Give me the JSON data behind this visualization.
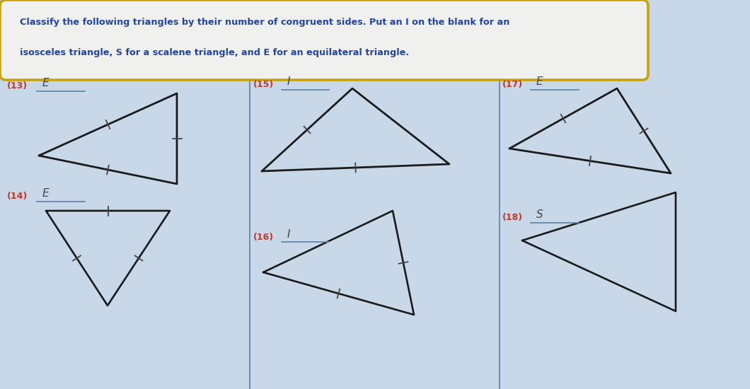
{
  "bg_color": "#c8d8e8",
  "title_line1": "Classify the following triangles by their number of congruent sides. Put an I on the blank for an",
  "title_line2": "isosceles triangle, S for a scalene triangle, and E for an equilateral triangle.",
  "divider_color": "#6688aa",
  "num_color": "#c0392b",
  "answer_color": "#444444",
  "line_color": "#6688aa",
  "triangle_color": "#1a1a1a",
  "title_color": "#2244aa",
  "title_bg": "#f0f0ee",
  "title_border": "#c8a000",
  "tick_color": "#444444",
  "problems": [
    {
      "num": "(13)",
      "answer": "E"
    },
    {
      "num": "(14)",
      "answer": "E"
    },
    {
      "num": "(15)",
      "answer": "I"
    },
    {
      "num": "(16)",
      "answer": "I"
    },
    {
      "num": "(17)",
      "answer": "E"
    },
    {
      "num": "(18)",
      "answer": "S"
    }
  ]
}
